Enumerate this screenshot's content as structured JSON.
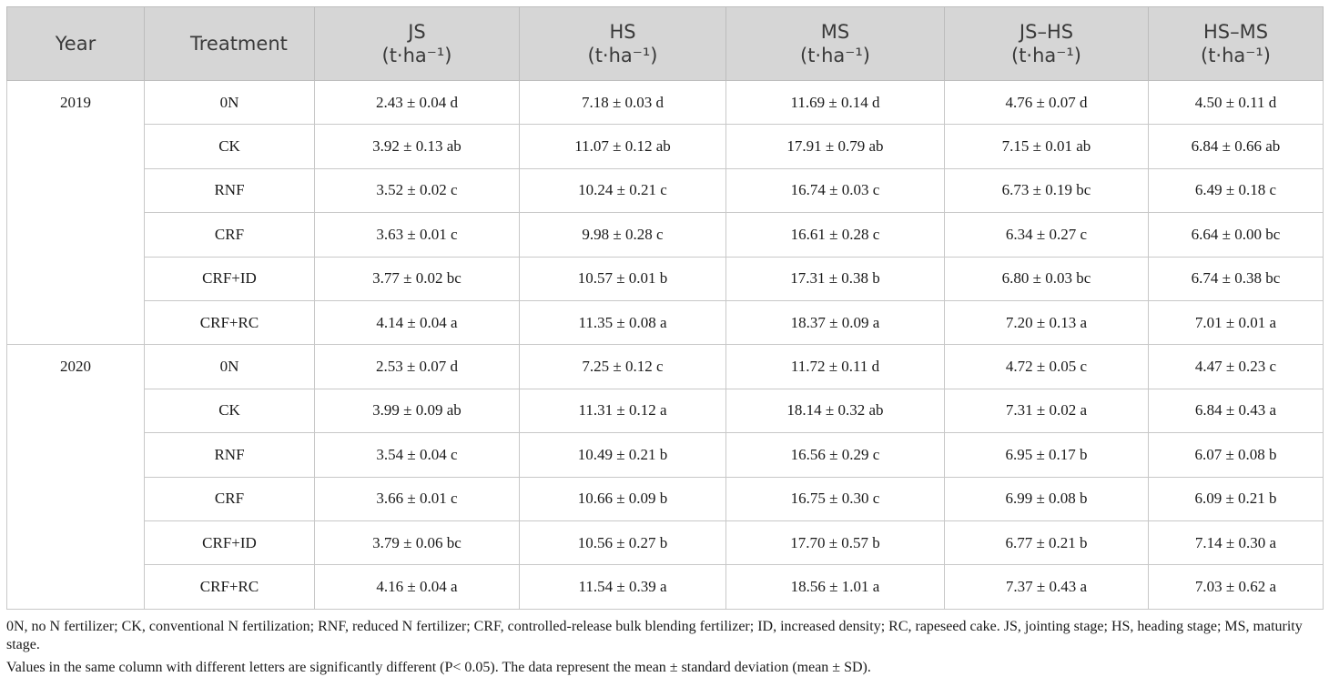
{
  "table": {
    "header": {
      "year": "Year",
      "treatment": "Treatment",
      "measures": [
        {
          "name": "JS",
          "unit": "(t·ha⁻¹)"
        },
        {
          "name": "HS",
          "unit": "(t·ha⁻¹)"
        },
        {
          "name": "MS",
          "unit": "(t·ha⁻¹)"
        },
        {
          "name": "JS–HS",
          "unit": "(t·ha⁻¹)"
        },
        {
          "name": "HS–MS",
          "unit": "(t·ha⁻¹)"
        }
      ]
    },
    "groups": [
      {
        "year": "2019",
        "rows": [
          [
            "0N",
            "2.43 ± 0.04 d",
            "7.18 ± 0.03 d",
            "11.69 ± 0.14 d",
            "4.76 ± 0.07 d",
            "4.50 ± 0.11 d"
          ],
          [
            "CK",
            "3.92 ± 0.13 ab",
            "11.07 ± 0.12 ab",
            "17.91 ± 0.79 ab",
            "7.15 ± 0.01 ab",
            "6.84 ± 0.66 ab"
          ],
          [
            "RNF",
            "3.52 ± 0.02 c",
            "10.24 ± 0.21 c",
            "16.74 ± 0.03 c",
            "6.73 ± 0.19 bc",
            "6.49 ± 0.18 c"
          ],
          [
            "CRF",
            "3.63 ± 0.01 c",
            "9.98 ± 0.28 c",
            "16.61 ± 0.28 c",
            "6.34 ± 0.27 c",
            "6.64 ± 0.00 bc"
          ],
          [
            "CRF+ID",
            "3.77 ± 0.02 bc",
            "10.57 ± 0.01 b",
            "17.31 ± 0.38 b",
            "6.80 ± 0.03 bc",
            "6.74 ± 0.38 bc"
          ],
          [
            "CRF+RC",
            "4.14 ± 0.04 a",
            "11.35 ± 0.08 a",
            "18.37 ± 0.09 a",
            "7.20 ± 0.13 a",
            "7.01 ± 0.01 a"
          ]
        ]
      },
      {
        "year": "2020",
        "rows": [
          [
            "0N",
            "2.53 ± 0.07 d",
            "7.25 ± 0.12 c",
            "11.72 ± 0.11 d",
            "4.72 ± 0.05 c",
            "4.47 ± 0.23 c"
          ],
          [
            "CK",
            "3.99 ± 0.09 ab",
            "11.31 ± 0.12 a",
            "18.14 ± 0.32 ab",
            "7.31 ± 0.02 a",
            "6.84 ± 0.43 a"
          ],
          [
            "RNF",
            "3.54 ± 0.04 c",
            "10.49 ± 0.21 b",
            "16.56 ± 0.29 c",
            "6.95 ± 0.17 b",
            "6.07 ± 0.08 b"
          ],
          [
            "CRF",
            "3.66 ± 0.01 c",
            "10.66 ± 0.09 b",
            "16.75 ± 0.30 c",
            "6.99 ± 0.08 b",
            "6.09 ± 0.21 b"
          ],
          [
            "CRF+ID",
            "3.79 ± 0.06 bc",
            "10.56 ± 0.27 b",
            "17.70 ± 0.57 b",
            "6.77 ± 0.21 b",
            "7.14 ± 0.30 a"
          ],
          [
            "CRF+RC",
            "4.16 ± 0.04 a",
            "11.54 ± 0.39 a",
            "18.56 ± 1.01 a",
            "7.37 ± 0.43 a",
            "7.03 ± 0.62 a"
          ]
        ]
      }
    ]
  },
  "footnotes": [
    "0N, no N fertilizer; CK, conventional N fertilization; RNF, reduced N fertilizer; CRF, controlled-release bulk blending fertilizer; ID, increased density; RC, rapeseed cake. JS, jointing stage; HS, heading stage; MS, maturity stage.",
    "Values in the same column with different letters are significantly different (P< 0.05). The data represent the mean ± standard deviation (mean ± SD)."
  ]
}
